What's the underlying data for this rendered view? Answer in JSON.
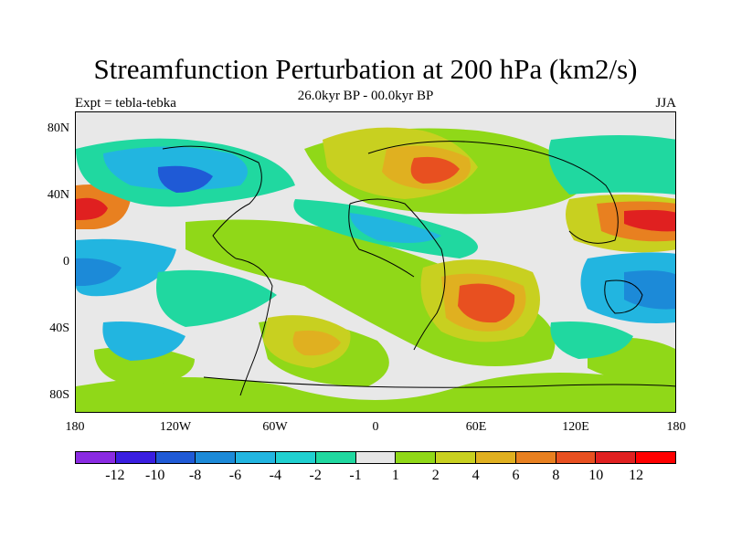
{
  "title": "Streamfunction Perturbation at 200 hPa (km2/s)",
  "subtitle": "26.0kyr BP - 00.0kyr BP",
  "left_label": "Expt = tebla-tebka",
  "right_label": "JJA",
  "lat_labels": [
    "80N",
    "40N",
    "0",
    "40S",
    "80S"
  ],
  "lon_labels": [
    "180",
    "120W",
    "60W",
    "0",
    "60E",
    "120E",
    "180"
  ],
  "colorbar": {
    "labels": [
      "-12",
      "-10",
      "-8",
      "-6",
      "-4",
      "-2",
      "-1",
      "1",
      "2",
      "4",
      "6",
      "8",
      "10",
      "12"
    ],
    "colors": [
      "#8a2be2",
      "#3a1ee0",
      "#1f5ad6",
      "#1c8ad8",
      "#22b5e0",
      "#20d0d0",
      "#20d8a0",
      "#e6e6e6",
      "#90d818",
      "#c8d020",
      "#e0b020",
      "#e88020",
      "#e85020",
      "#e02020",
      "#ff0000"
    ]
  },
  "chart_data": {
    "type": "contour-map",
    "title": "Streamfunction Perturbation at 200 hPa (km2/s)",
    "subtitle": "26.0kyr BP - 00.0kyr BP",
    "xlim": [
      -180,
      180
    ],
    "ylim": [
      -90,
      90
    ],
    "x_ticks": [
      "180",
      "120W",
      "60W",
      "0",
      "60E",
      "120E",
      "180"
    ],
    "y_ticks": [
      "80N",
      "40N",
      "0",
      "40S",
      "80S"
    ],
    "levels": [
      -12,
      -10,
      -8,
      -6,
      -4,
      -2,
      -1,
      1,
      2,
      4,
      6,
      8,
      10,
      12
    ]
  }
}
